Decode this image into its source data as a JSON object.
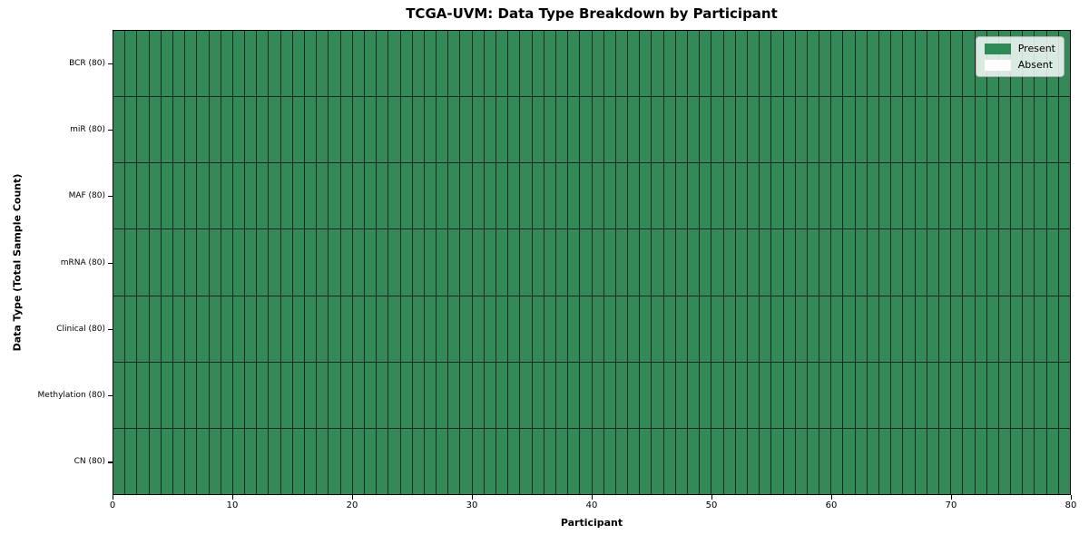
{
  "chart_data": {
    "type": "heatmap",
    "title": "TCGA-UVM: Data Type Breakdown by Participant",
    "xlabel": "Participant",
    "ylabel": "Data Type (Total Sample Count)",
    "xlim": [
      0,
      80
    ],
    "x_ticks": [
      0,
      10,
      20,
      30,
      40,
      50,
      60,
      70,
      80
    ],
    "n_participants": 80,
    "grid_on": false,
    "legend_position": "upper right",
    "rows": [
      {
        "label": "BCR (80)",
        "present": 80,
        "absent": 0
      },
      {
        "label": "miR (80)",
        "present": 80,
        "absent": 0
      },
      {
        "label": "MAF (80)",
        "present": 80,
        "absent": 0
      },
      {
        "label": "mRNA (80)",
        "present": 80,
        "absent": 0
      },
      {
        "label": "Clinical (80)",
        "present": 80,
        "absent": 0
      },
      {
        "label": "Methylation (80)",
        "present": 80,
        "absent": 0
      },
      {
        "label": "CN (80)",
        "present": 80,
        "absent": 0
      }
    ],
    "legend": [
      {
        "label": "Present",
        "color": "#2e8b57"
      },
      {
        "label": "Absent",
        "color": "#ffffff"
      }
    ],
    "colors": {
      "present": "#318a58",
      "absent": "#ffffff",
      "cell_edge": "#1c261f",
      "spine": "#000000",
      "background": "#ffffff"
    }
  }
}
